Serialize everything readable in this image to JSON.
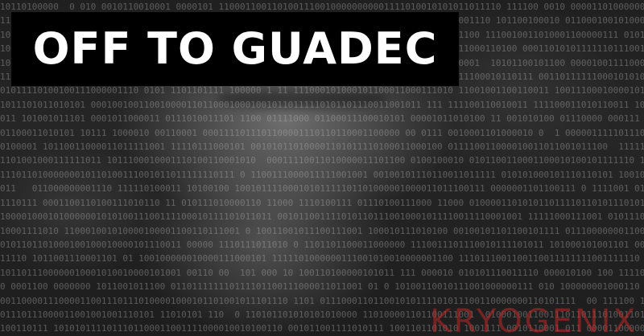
{
  "title": "OFF TO GUADEC",
  "watermark": "KRYOGENIX",
  "colors": {
    "title_background": "#000000",
    "title_text": "#ffffff",
    "watermark": "#be2828",
    "background": "#1c1c1c"
  }
}
